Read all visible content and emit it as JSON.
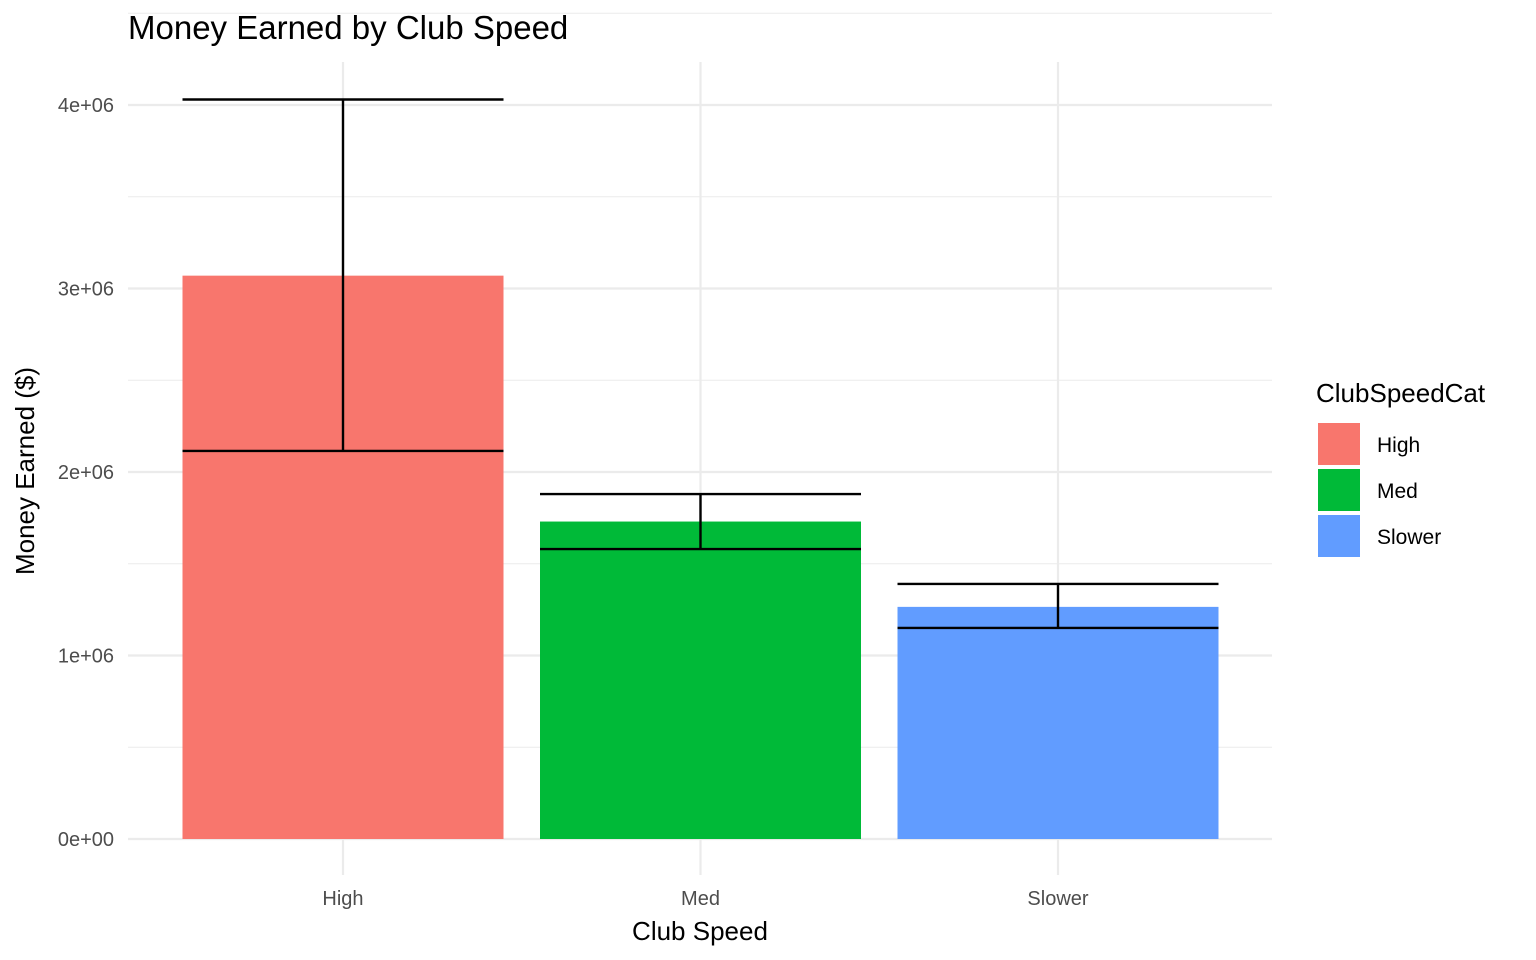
{
  "chart_data": {
    "type": "bar",
    "title": "Money Earned by Club Speed",
    "xlabel": "Club Speed",
    "ylabel": "Money Earned ($)",
    "categories": [
      "High",
      "Med",
      "Slower"
    ],
    "values": [
      3070000,
      1730000,
      1265000
    ],
    "error_bars": [
      {
        "low": 2115000,
        "high": 4030000
      },
      {
        "low": 1580000,
        "high": 1880000
      },
      {
        "low": 1150000,
        "high": 1390000
      }
    ],
    "colors": [
      "#F8766D",
      "#00BA38",
      "#619CFF"
    ],
    "ylim": [
      0,
      4000000
    ],
    "y_ticks": [
      0,
      1000000,
      2000000,
      3000000,
      4000000
    ],
    "y_tick_labels": [
      "0e+00",
      "1e+06",
      "2e+06",
      "3e+06",
      "4e+06"
    ],
    "grid": true,
    "legend": {
      "title": "ClubSpeedCat",
      "position": "right",
      "entries": [
        "High",
        "Med",
        "Slower"
      ]
    }
  }
}
